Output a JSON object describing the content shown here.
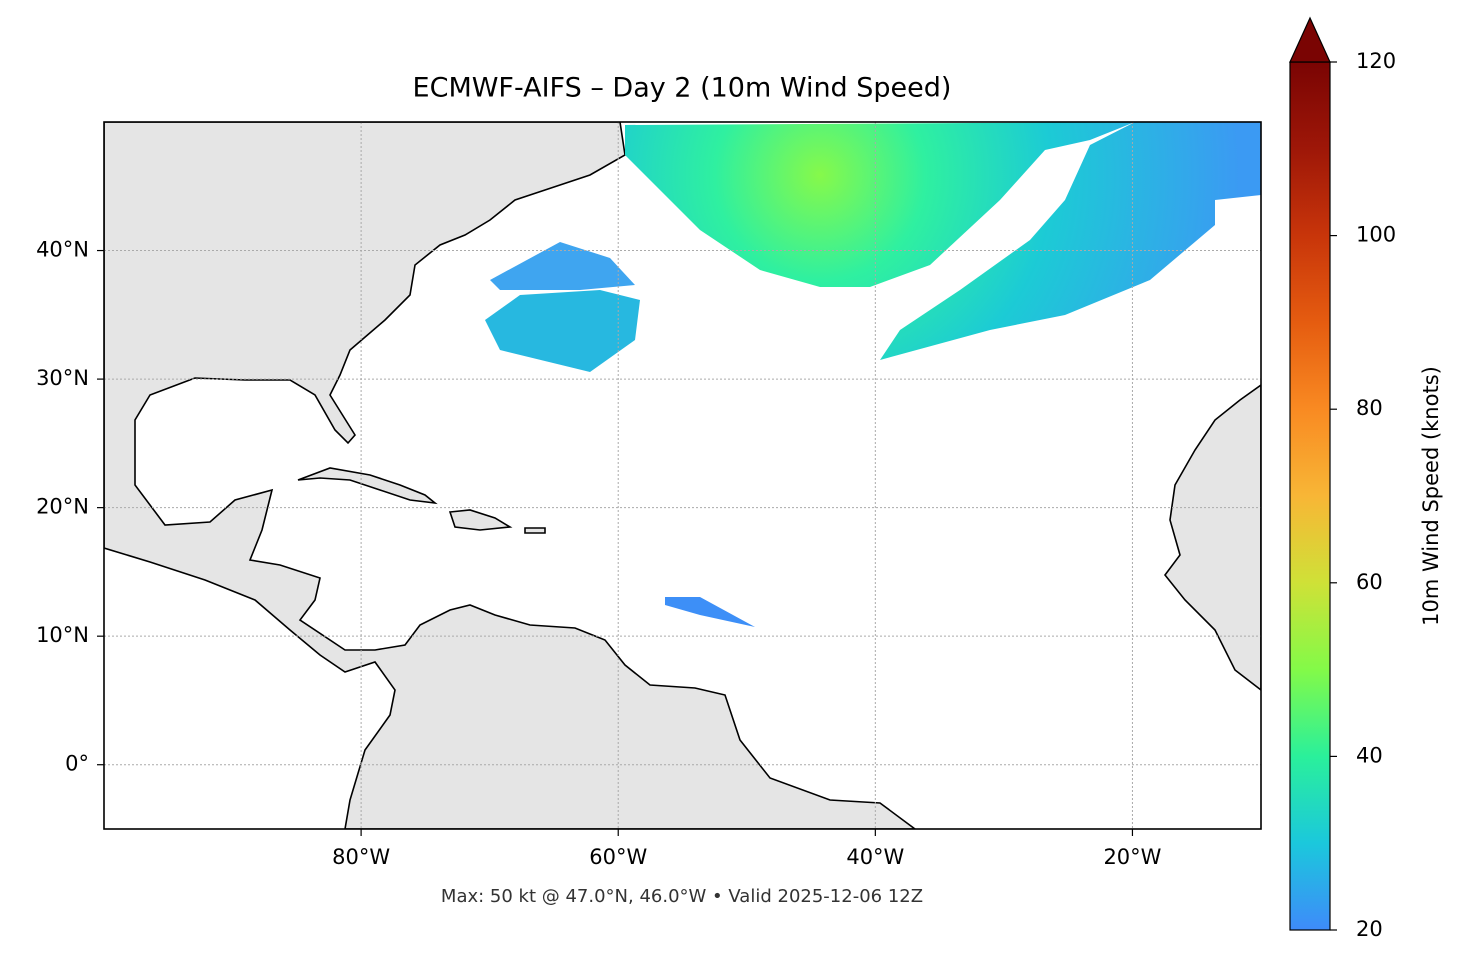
{
  "map": {
    "title": "ECMWF-AIFS – Day 2 (10m Wind Speed)",
    "footer": "Max: 50 kt @ 47.0°N, 46.0°W • Valid 2025-12-06 12Z",
    "xlim": [
      -100,
      -10
    ],
    "ylim": [
      -5,
      50
    ],
    "xticks": [
      {
        "value": -80,
        "label": "80°W"
      },
      {
        "value": -60,
        "label": "60°W"
      },
      {
        "value": -40,
        "label": "40°W"
      },
      {
        "value": -20,
        "label": "20°W"
      }
    ],
    "yticks": [
      {
        "value": 0,
        "label": "0°"
      },
      {
        "value": 10,
        "label": "10°N"
      },
      {
        "value": 20,
        "label": "20°N"
      },
      {
        "value": 30,
        "label": "30°N"
      },
      {
        "value": 40,
        "label": "40°N"
      }
    ],
    "grid": true,
    "colorbar": {
      "label": "10m Wind Speed (knots)",
      "lim": [
        20,
        120
      ],
      "ticks": [
        20,
        40,
        60,
        80,
        100,
        120
      ]
    }
  }
}
